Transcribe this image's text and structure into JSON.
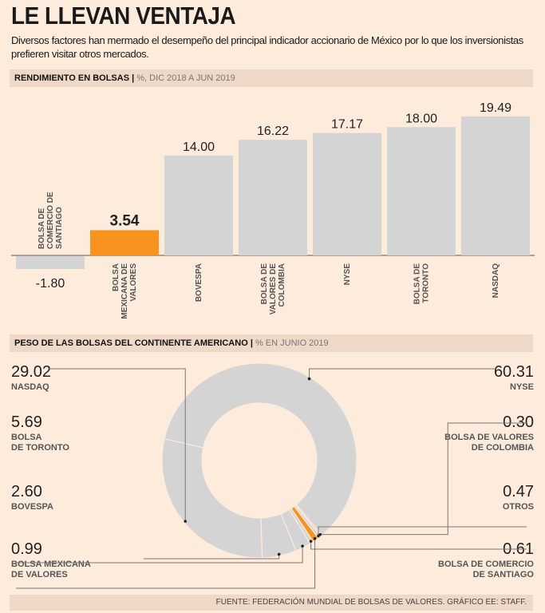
{
  "title": "LE LLEVAN VENTAJA",
  "subtitle": "Diversos factores han mermado el desempeño del principal indicador accionario de México por lo que los inversionistas prefieren visitar otros mercados.",
  "source": "FUENTE: FEDERACIÓN MUNDIAL DE BOLSAS DE VALORES. GRÁFICO EE: STAFF.",
  "colors": {
    "highlight": "#f7931e",
    "bar": "#d4d4d4",
    "background": "#fdebdc"
  },
  "chart_data": [
    {
      "type": "bar",
      "title": "RENDIMIENTO EN BOLSAS",
      "subtitle": "%, DIC 2018 A JUN 2019",
      "categories": [
        "BOLSA DE COMERCIO DE SANTIAGO",
        "BOLSA MEXICANA DE VALORES",
        "BOVESPA",
        "BOLSA DE VALORES DE COLOMBIA",
        "NYSE",
        "BOLSA DE TORONTO",
        "NASDAQ"
      ],
      "values": [
        -1.8,
        3.54,
        14.0,
        16.22,
        17.17,
        18.0,
        19.49
      ],
      "labels": [
        "-1.80",
        "3.54",
        "14.00",
        "16.22",
        "17.17",
        "18.00",
        "19.49"
      ],
      "highlight_index": 1
    },
    {
      "type": "pie",
      "title": "PESO DE LAS BOLSAS DEL CONTINENTE AMERICANO",
      "subtitle": "% EN JUNIO 2019",
      "slices": [
        {
          "name": "NYSE",
          "value": 60.31,
          "label": "60.31"
        },
        {
          "name": "BOLSA DE VALORES DE COLOMBIA",
          "value": 0.3,
          "label": "0.30"
        },
        {
          "name": "OTROS",
          "value": 0.47,
          "label": "0.47"
        },
        {
          "name": "BOLSA MEXICANA DE VALORES",
          "value": 0.99,
          "label": "0.99",
          "highlight": true
        },
        {
          "name": "BOLSA DE COMERCIO DE SANTIAGO",
          "value": 0.61,
          "label": "0.61"
        },
        {
          "name": "BOVESPA",
          "value": 2.6,
          "label": "2.60"
        },
        {
          "name": "BOLSA DE TORONTO",
          "value": 5.69,
          "label": "5.69"
        },
        {
          "name": "NASDAQ",
          "value": 29.02,
          "label": "29.02"
        }
      ]
    }
  ]
}
